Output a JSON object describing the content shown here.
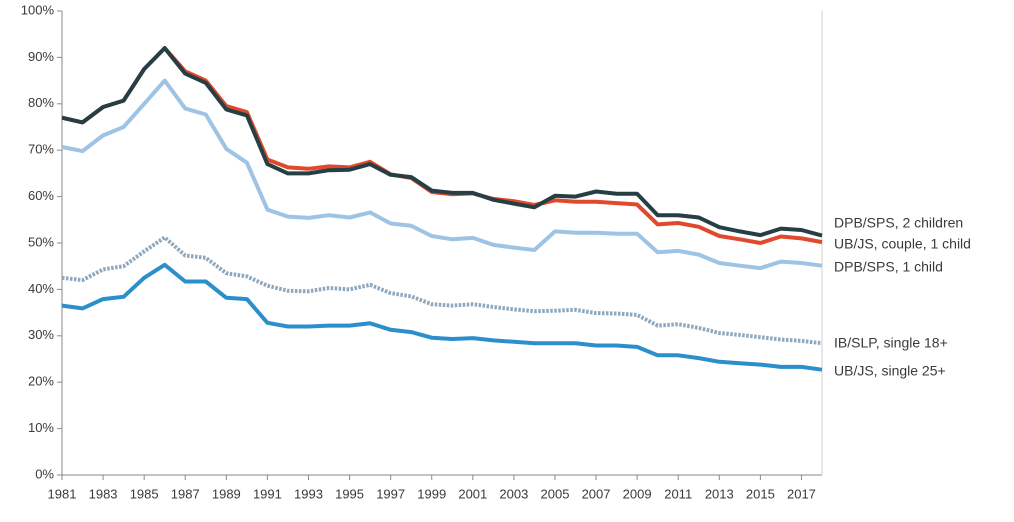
{
  "chart_data": {
    "type": "line",
    "x": [
      1981,
      1982,
      1983,
      1984,
      1985,
      1986,
      1987,
      1988,
      1989,
      1990,
      1991,
      1992,
      1993,
      1994,
      1995,
      1996,
      1997,
      1998,
      1999,
      2000,
      2001,
      2002,
      2003,
      2004,
      2005,
      2006,
      2007,
      2008,
      2009,
      2010,
      2011,
      2012,
      2013,
      2014,
      2015,
      2016,
      2017,
      2018
    ],
    "xlim": [
      1981,
      2018
    ],
    "xticks": [
      1981,
      1983,
      1985,
      1987,
      1989,
      1991,
      1993,
      1995,
      1997,
      1999,
      2001,
      2003,
      2005,
      2007,
      2009,
      2011,
      2013,
      2015,
      2017
    ],
    "ylim": [
      0,
      100
    ],
    "yticks": [
      {
        "value": 0,
        "label": "0%"
      },
      {
        "value": 10,
        "label": "10%"
      },
      {
        "value": 20,
        "label": "20%"
      },
      {
        "value": 30,
        "label": "30%"
      },
      {
        "value": 40,
        "label": "40%"
      },
      {
        "value": 50,
        "label": "50%"
      },
      {
        "value": 60,
        "label": "60%"
      },
      {
        "value": 70,
        "label": "70%"
      },
      {
        "value": 80,
        "label": "80%"
      },
      {
        "value": 90,
        "label": "90%"
      },
      {
        "value": 100,
        "label": "100%"
      }
    ],
    "grid": false,
    "legend": "right",
    "series": [
      {
        "name": "DPB/SPS, 2 children",
        "color": "#263f44",
        "style": "solid",
        "values": [
          77,
          76,
          79.3,
          80.7,
          87.5,
          92,
          86.5,
          84.5,
          78.8,
          77.5,
          67,
          65,
          65,
          65.7,
          65.8,
          67,
          64.7,
          64.2,
          61.3,
          60.8,
          60.8,
          59.3,
          58.5,
          57.7,
          60.2,
          60,
          61.1,
          60.6,
          60.6,
          56,
          56,
          55.5,
          53.4,
          52.5,
          51.7,
          53.1,
          52.8,
          51.6
        ]
      },
      {
        "name": "UB/JS, couple, 1 child",
        "color": "#e04a2c",
        "style": "solid",
        "values": [
          77,
          76,
          79.3,
          80.7,
          87.5,
          92,
          87,
          85,
          79.5,
          78.2,
          68,
          66.3,
          66,
          66.5,
          66.3,
          67.5,
          64.8,
          64,
          61,
          60.5,
          60.7,
          59.5,
          59,
          58.2,
          59.2,
          58.9,
          58.9,
          58.6,
          58.3,
          54,
          54.3,
          53.5,
          51.5,
          50.8,
          50,
          51.4,
          51,
          50.2
        ]
      },
      {
        "name": "DPB/SPS, 1 child",
        "color": "#9ec3e4",
        "style": "solid",
        "values": [
          70.7,
          69.8,
          73.2,
          75,
          80,
          85,
          79,
          77.7,
          70.3,
          67.3,
          57.2,
          55.7,
          55.4,
          56,
          55.5,
          56.6,
          54.2,
          53.7,
          51.5,
          50.8,
          51.1,
          49.6,
          49,
          48.5,
          52.5,
          52.2,
          52.2,
          52,
          52,
          48,
          48.3,
          47.5,
          45.7,
          45.1,
          44.6,
          46,
          45.7,
          45.1
        ]
      },
      {
        "name": "IB/SLP, single 18+",
        "color": "#8ea7bd",
        "style": "dotted",
        "values": [
          42.5,
          42,
          44.3,
          45,
          48.2,
          51.2,
          47.3,
          46.8,
          43.5,
          42.8,
          40.8,
          39.7,
          39.6,
          40.3,
          40,
          41,
          39.2,
          38.5,
          36.8,
          36.5,
          36.8,
          36.2,
          35.7,
          35.3,
          35.4,
          35.6,
          34.9,
          34.8,
          34.5,
          32.2,
          32.5,
          31.7,
          30.6,
          30.2,
          29.7,
          29.2,
          28.9,
          28.4
        ]
      },
      {
        "name": "UB/JS, single 25+",
        "color": "#2a8fcb",
        "style": "solid",
        "values": [
          36.5,
          35.9,
          37.9,
          38.4,
          42.5,
          45.3,
          41.7,
          41.7,
          38.2,
          37.9,
          32.8,
          32,
          32,
          32.2,
          32.2,
          32.7,
          31.3,
          30.8,
          29.6,
          29.3,
          29.5,
          29,
          28.7,
          28.4,
          28.4,
          28.4,
          27.9,
          27.9,
          27.6,
          25.8,
          25.8,
          25.2,
          24.4,
          24.1,
          23.8,
          23.3,
          23.3,
          22.7
        ]
      }
    ]
  }
}
